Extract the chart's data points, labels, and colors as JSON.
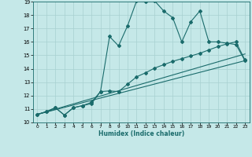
{
  "xlabel": "Humidex (Indice chaleur)",
  "bg_color": "#c5e8e8",
  "line_color": "#1a6b6b",
  "grid_color": "#a8d0d0",
  "xlim": [
    -0.5,
    23.5
  ],
  "ylim": [
    10,
    19
  ],
  "xticks": [
    0,
    1,
    2,
    3,
    4,
    5,
    6,
    7,
    8,
    9,
    10,
    11,
    12,
    13,
    14,
    15,
    16,
    17,
    18,
    19,
    20,
    21,
    22,
    23
  ],
  "yticks": [
    10,
    11,
    12,
    13,
    14,
    15,
    16,
    17,
    18,
    19
  ],
  "series1_x": [
    0,
    1,
    2,
    3,
    4,
    5,
    6,
    7,
    8,
    9,
    10,
    11,
    12,
    13,
    14,
    15,
    16,
    17,
    18,
    19,
    20,
    21,
    22,
    23
  ],
  "series1_y": [
    10.6,
    10.8,
    11.1,
    10.55,
    11.1,
    11.25,
    11.5,
    12.3,
    16.4,
    15.7,
    17.2,
    19.05,
    19.0,
    19.05,
    18.3,
    17.8,
    16.0,
    17.5,
    18.3,
    16.0,
    16.0,
    15.9,
    15.8,
    14.6
  ],
  "series2_x": [
    0,
    1,
    2,
    3,
    4,
    5,
    6,
    7,
    8,
    9,
    10,
    11,
    12,
    13,
    14,
    15,
    16,
    17,
    18,
    19,
    20,
    21,
    22,
    23
  ],
  "series2_y": [
    10.6,
    10.8,
    11.1,
    10.55,
    11.1,
    11.25,
    11.4,
    12.3,
    12.35,
    12.3,
    12.85,
    13.4,
    13.7,
    14.05,
    14.3,
    14.55,
    14.75,
    14.95,
    15.15,
    15.4,
    15.65,
    15.85,
    16.0,
    14.65
  ],
  "series3_x": [
    0,
    23
  ],
  "series3_y": [
    10.6,
    15.1
  ],
  "series4_x": [
    0,
    23
  ],
  "series4_y": [
    10.6,
    14.6
  ]
}
